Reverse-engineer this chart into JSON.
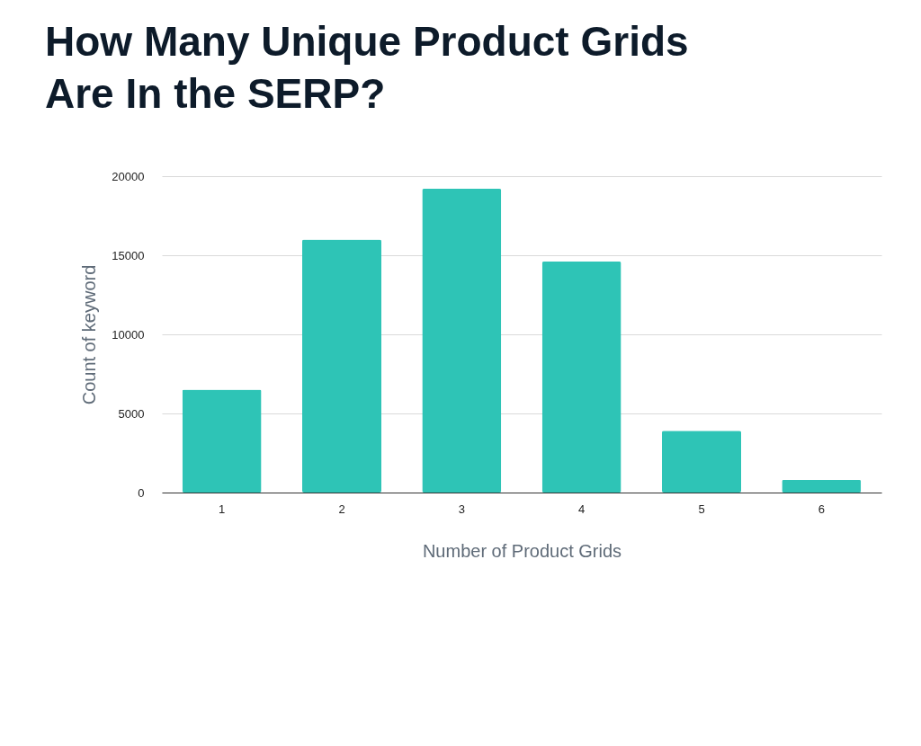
{
  "chart_data": {
    "type": "bar",
    "title": "How Many Unique Product Grids Are In the SERP?",
    "xlabel": "Number of Product Grids",
    "ylabel": "Count of keyword",
    "categories": [
      "1",
      "2",
      "3",
      "4",
      "5",
      "6"
    ],
    "values": [
      6500,
      16000,
      19200,
      14600,
      3900,
      800
    ],
    "color": "#2ec4b6",
    "ylim": [
      0,
      20000
    ],
    "yticks": [
      0,
      5000,
      10000,
      15000,
      20000
    ],
    "grid": "y",
    "legend": false
  }
}
